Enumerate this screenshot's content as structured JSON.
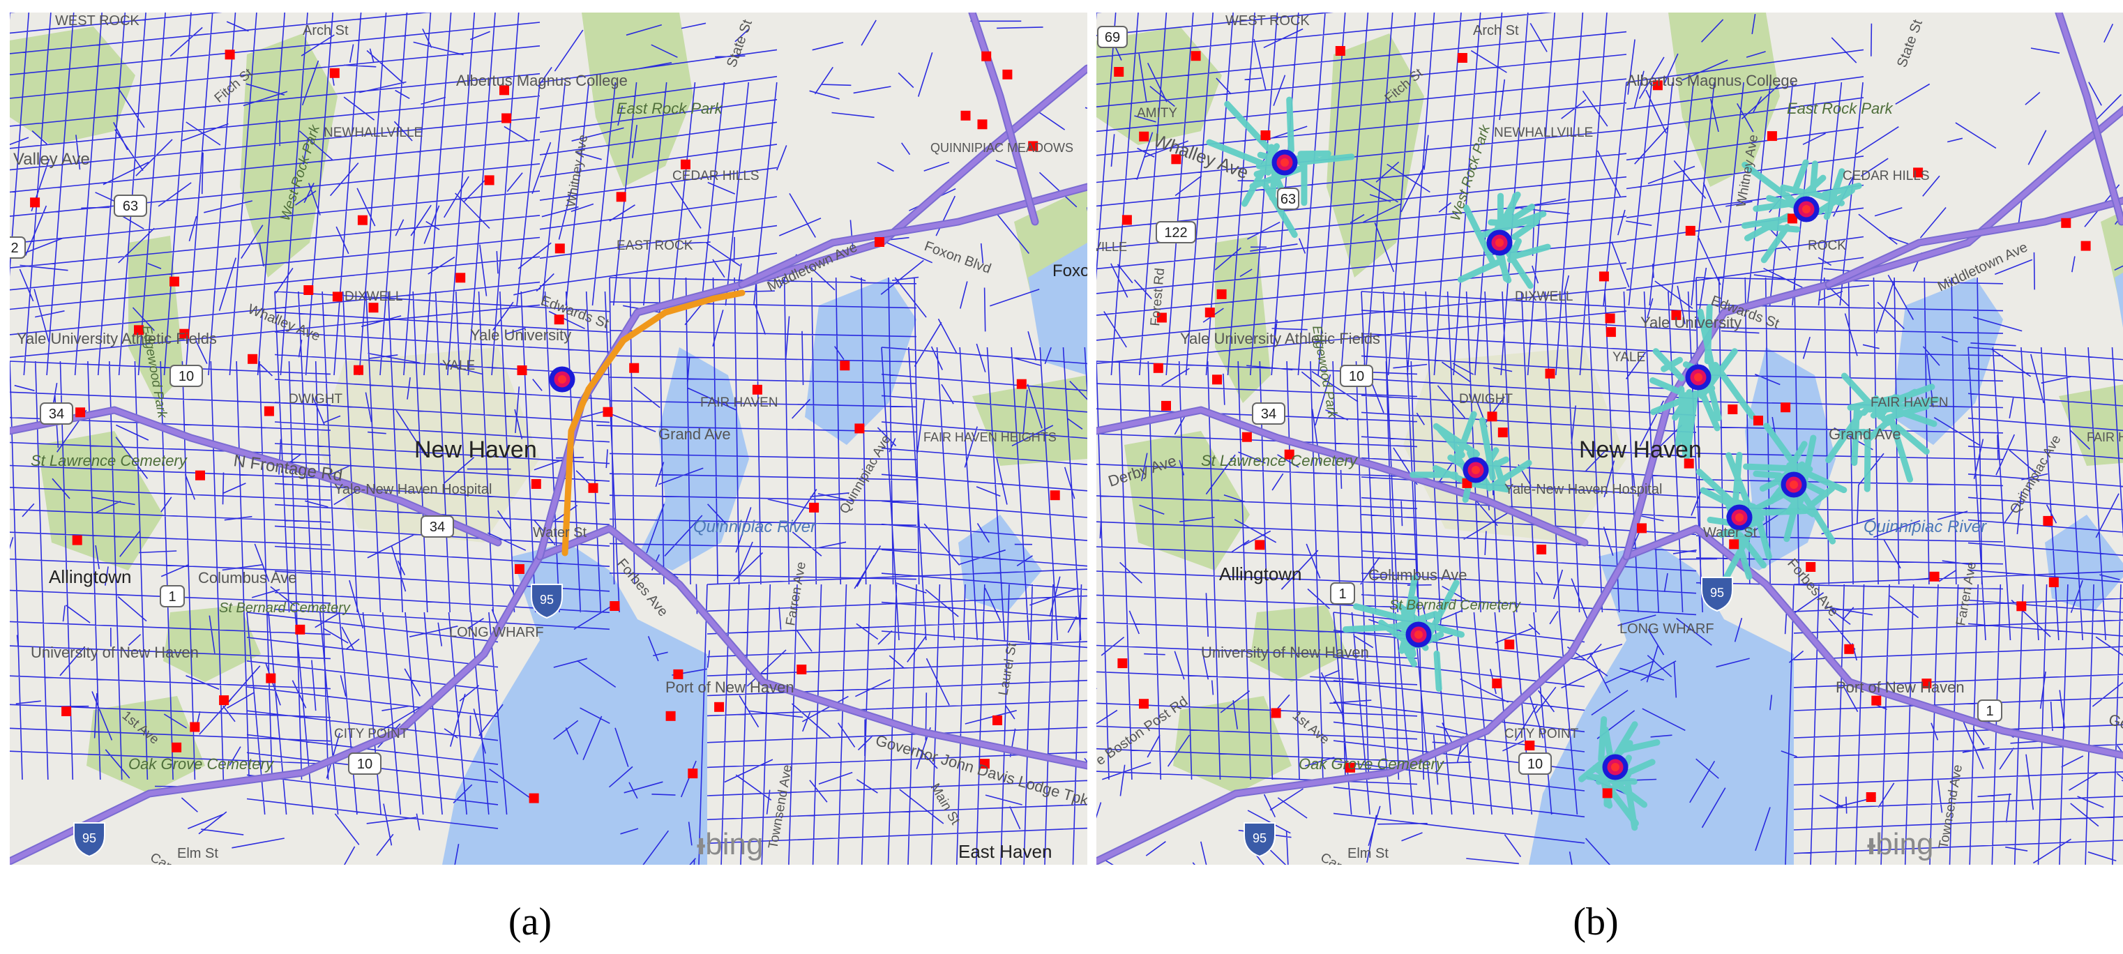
{
  "figure": {
    "panels": [
      {
        "id": "a",
        "caption": "(a)",
        "attribution": "bing",
        "labels": {
          "city": "New Haven",
          "westrock": "WEST ROCK",
          "archst": "Arch St",
          "statest": "State St",
          "albertus": "Albertus Magnus College",
          "eastrockpark": "East Rock Park",
          "newhallville": "NEWHALLVILLE",
          "fitchst": "Fitch St",
          "valleyave": "Valley Ave",
          "westrockpark": "West Rock Park",
          "cedarhills": "CEDAR HILLS",
          "quinnipiacmeadows": "QUINNIPIAC MEADOWS",
          "eastrock": "EAST ROCK",
          "foxonblvd": "Foxon Blvd",
          "middletownave": "Middletown Ave",
          "foxon": "Foxo",
          "whalleyave": "Whalley Ave",
          "dixwell": "DIXWELL",
          "edwardsst": "Edwards St",
          "yaleu": "Yale University",
          "yale": "YALE",
          "yaleathletic": "Yale University Athletic Fields",
          "edgewoodpark": "Edgewood Park",
          "dwight": "DWIGHT",
          "fairhaven": "FAIR HAVEN",
          "fairhavenheights": "FAIR HAVEN HEIGHTS",
          "grandave": "Grand Ave",
          "nfrontage": "N Frontage Rd",
          "stlawrence": "St Lawrence Cemetery",
          "hospital": "Yale-New Haven Hospital",
          "quinnipiacriver": "Quinnipiac River",
          "waterst": "Water St",
          "allingtown": "Allingtown",
          "columbusave": "Columbus Ave",
          "stbernard": "St Bernard Cemetery",
          "longwharf": "LONG WHARF",
          "forbesave": "Forbes Ave",
          "uofnewhaven": "University of New Haven",
          "portofnewhaven": "Port of New Haven",
          "cityPoint": "CITY POINT",
          "oakgrove": "Oak Grove Cemetery",
          "governor": "Governor John Davis Lodge Tpk",
          "firstave": "1st Ave",
          "elmst": "Elm St",
          "easthaven": "East Haven",
          "mainst": "Main St",
          "laurelst": "Laurel St",
          "townsendave": "Townsend Ave",
          "farrenave": "Farren Ave",
          "quinnipiacave": "Quinnipiac Ave",
          "campbell": "Campbe",
          "whitneyave": "Whitney Ave"
        },
        "shields": {
          "r63": "63",
          "r10": "10",
          "r34": "34",
          "r1": "1",
          "r95": "95",
          "r10b": "10",
          "r34b": "34",
          "r2": "2"
        }
      },
      {
        "id": "b",
        "caption": "(b)",
        "attribution": "bing",
        "labels": {
          "city": "New Haven",
          "westrock": "WEST ROCK",
          "archst": "Arch St",
          "statest": "State St",
          "albertus": "Albertus Magnus College",
          "eastrockpark": "East Rock Park",
          "newhallville": "NEWHALLVILLE",
          "fitchst": "Fitch St",
          "amity": "AMITY",
          "whalleyave": "Whalley Ave",
          "westrockpark": "West Rock Park",
          "cedarhills": "CEDAR HILLS",
          "eastrock": "ROCK",
          "middletownave": "Middletown Ave",
          "dixwell": "DIXWELL",
          "edwardsst": "Edwards St",
          "yaleu": "Yale University",
          "yale": "YALE",
          "yaleathletic": "Yale University Athletic Fields",
          "forestrd": "Forest Rd",
          "edgewoodpark": "Edgewood Park",
          "dwight": "DWIGHT",
          "fairhaven": "FAIR HAVEN",
          "fairhavenheights": "FAIR HAVEN HEIGHTS",
          "grandave": "Grand Ave",
          "derbyave": "Derby Ave",
          "stlawrence": "St Lawrence Cemetery",
          "hospital": "Yale-New Haven Hospital",
          "quinnipiacriver": "Quinnipiac River",
          "waterst": "Water St",
          "allingtown": "Allingtown",
          "columbusave": "Columbus Ave",
          "stbernard": "St Bernard Cemetery",
          "longwharf": "LONG WHARF",
          "forbesave": "Forbes Ave",
          "uofnewhaven": "University of New Haven",
          "portofnewhaven": "Port of New Haven",
          "cityPoint": "CITY POINT",
          "oakgrove": "Oak Grove Cemetery",
          "governor": "Governor",
          "bostonpost": "e Boston Post Rd",
          "firstave": "1st Ave",
          "elmst": "Elm St",
          "townsendave": "Townsend Ave",
          "farrenave": "Farren Ave",
          "quinnipiacave": "Quinnipiac Ave",
          "campbell": "Campbe",
          "whitneyave": "Whitney Ave",
          "ville": "VILLE"
        },
        "shields": {
          "r69": "69",
          "r63": "63",
          "r122": "122",
          "r10": "10",
          "r34": "34",
          "r1": "1",
          "r95": "95",
          "r10b": "10",
          "r1b": "1"
        }
      }
    ],
    "legend_colors": {
      "road_network": "#2222dd",
      "highway": "#9a7ee0",
      "water": "#a9c8f2",
      "park": "#c6dca6",
      "demand_point": "#ff0000",
      "facility": "#1a1ad8",
      "route": "#f0981c",
      "coverage": "#5fcdc4"
    },
    "panel_a_facilities": 1,
    "panel_b_facilities": 10,
    "icons": [
      "bing-logo-icon"
    ]
  }
}
